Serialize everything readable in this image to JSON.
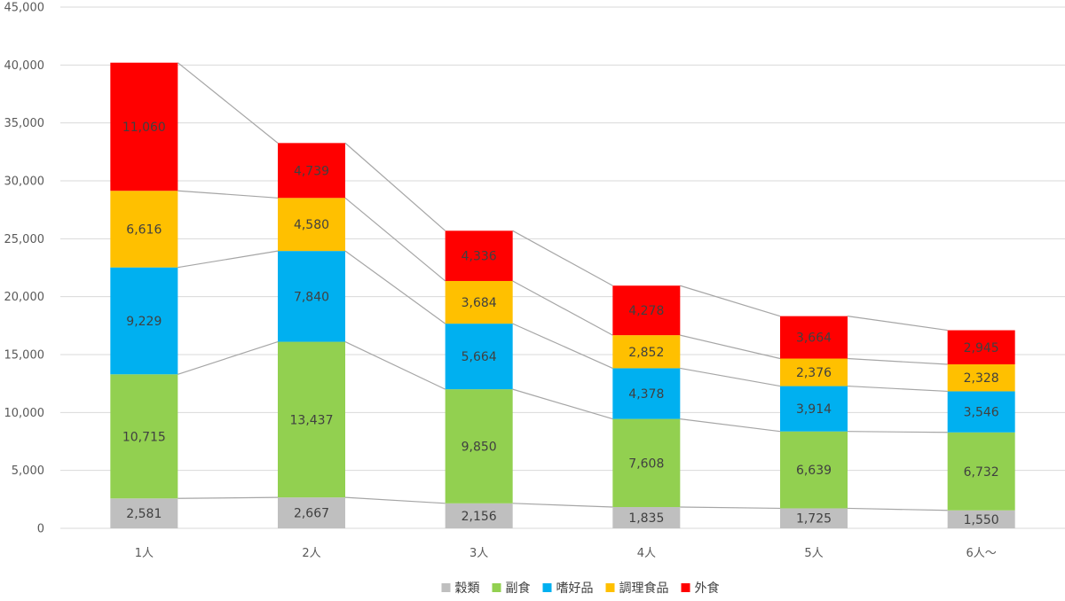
{
  "chart_data": {
    "type": "bar",
    "stacked": true,
    "categories": [
      "1人",
      "2人",
      "3人",
      "4人",
      "5人",
      "6人〜"
    ],
    "series": [
      {
        "name": "穀類",
        "color": "#bfbfbf",
        "values": [
          2581,
          2667,
          2156,
          1835,
          1725,
          1550
        ]
      },
      {
        "name": "副食",
        "color": "#92d050",
        "values": [
          10715,
          13437,
          9850,
          7608,
          6639,
          6732
        ]
      },
      {
        "name": "嗜好品",
        "color": "#00b0f0",
        "values": [
          9229,
          7840,
          5664,
          4378,
          3914,
          3546
        ]
      },
      {
        "name": "調理食品",
        "color": "#ffc000",
        "values": [
          6616,
          4580,
          3684,
          2852,
          2376,
          2328
        ]
      },
      {
        "name": "外食",
        "color": "#ff0000",
        "values": [
          11060,
          4739,
          4336,
          4278,
          3664,
          2945
        ]
      }
    ],
    "ylim": [
      0,
      45000
    ],
    "yticks": [
      0,
      5000,
      10000,
      15000,
      20000,
      25000,
      30000,
      35000,
      40000,
      45000
    ],
    "ytick_labels": [
      "0",
      "5,000",
      "10,000",
      "15,000",
      "20,000",
      "25,000",
      "30,000",
      "35,000",
      "40,000",
      "45,000"
    ],
    "grid": true,
    "series_lines": true,
    "legend_position": "bottom",
    "title": "",
    "xlabel": "",
    "ylabel": ""
  }
}
